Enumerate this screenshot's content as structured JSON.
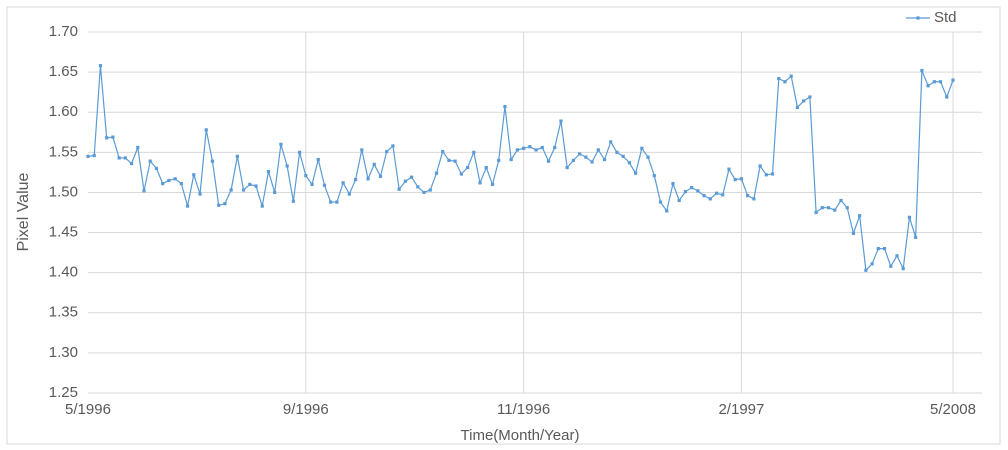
{
  "chart_data": {
    "type": "line",
    "x_label": "Time(Month/Year)",
    "y_label": "Pixel Value",
    "categories": [
      "5/1996",
      null,
      null,
      null,
      null,
      null,
      null,
      null,
      null,
      null,
      null,
      null,
      null,
      null,
      null,
      null,
      null,
      null,
      null,
      null,
      null,
      null,
      null,
      null,
      null,
      null,
      null,
      null,
      null,
      null,
      null,
      null,
      null,
      null,
      null,
      "9/1996",
      null,
      null,
      null,
      null,
      null,
      null,
      null,
      null,
      null,
      null,
      null,
      null,
      null,
      null,
      null,
      null,
      null,
      null,
      null,
      null,
      null,
      null,
      null,
      null,
      null,
      null,
      null,
      null,
      null,
      null,
      null,
      null,
      null,
      null,
      "11/1996",
      null,
      null,
      null,
      null,
      null,
      null,
      null,
      null,
      null,
      null,
      null,
      null,
      null,
      null,
      null,
      null,
      null,
      null,
      null,
      null,
      null,
      null,
      null,
      null,
      null,
      null,
      null,
      null,
      null,
      null,
      null,
      null,
      null,
      null,
      "2/1997",
      null,
      null,
      null,
      null,
      null,
      null,
      null,
      null,
      null,
      null,
      null,
      null,
      null,
      null,
      null,
      null,
      null,
      null,
      null,
      null,
      null,
      null,
      null,
      null,
      null,
      null,
      null,
      null,
      null,
      null,
      null,
      null,
      null,
      "5/2008"
    ],
    "series": [
      {
        "name": "Std",
        "color": "#5b9bd5",
        "values": [
          1.545,
          1.546,
          1.658,
          1.568,
          1.569,
          1.543,
          1.543,
          1.536,
          1.556,
          1.502,
          1.539,
          1.53,
          1.511,
          1.515,
          1.517,
          1.511,
          1.483,
          1.522,
          1.498,
          1.578,
          1.539,
          1.484,
          1.486,
          1.503,
          1.545,
          1.503,
          1.51,
          1.508,
          1.483,
          1.526,
          1.5,
          1.56,
          1.533,
          1.489,
          1.55,
          1.521,
          1.51,
          1.541,
          1.509,
          1.488,
          1.488,
          1.512,
          1.498,
          1.516,
          1.553,
          1.517,
          1.535,
          1.52,
          1.551,
          1.558,
          1.504,
          1.514,
          1.519,
          1.507,
          1.5,
          1.503,
          1.524,
          1.551,
          1.54,
          1.539,
          1.523,
          1.531,
          1.55,
          1.512,
          1.531,
          1.51,
          1.54,
          1.607,
          1.541,
          1.553,
          1.555,
          1.557,
          1.553,
          1.556,
          1.539,
          1.556,
          1.589,
          1.531,
          1.54,
          1.548,
          1.544,
          1.538,
          1.553,
          1.541,
          1.563,
          1.55,
          1.545,
          1.537,
          1.524,
          1.555,
          1.544,
          1.521,
          1.488,
          1.477,
          1.511,
          1.49,
          1.501,
          1.506,
          1.502,
          1.496,
          1.492,
          1.499,
          1.497,
          1.529,
          1.516,
          1.517,
          1.496,
          1.492,
          1.533,
          1.522,
          1.523,
          1.642,
          1.638,
          1.645,
          1.606,
          1.614,
          1.619,
          1.475,
          1.481,
          1.481,
          1.478,
          1.49,
          1.481,
          1.449,
          1.471,
          1.403,
          1.411,
          1.43,
          1.43,
          1.408,
          1.421,
          1.405,
          1.469,
          1.444,
          1.652,
          1.633,
          1.638,
          1.638,
          1.619,
          1.64
        ]
      }
    ],
    "ylim": [
      1.25,
      1.7
    ],
    "yticks": [
      {
        "value": 1.25,
        "label": "1.25"
      },
      {
        "value": 1.3,
        "label": "1.30"
      },
      {
        "value": 1.35,
        "label": "1.35"
      },
      {
        "value": 1.4,
        "label": "1.40"
      },
      {
        "value": 1.45,
        "label": "1.45"
      },
      {
        "value": 1.5,
        "label": "1.50"
      },
      {
        "value": 1.55,
        "label": "1.55"
      },
      {
        "value": 1.6,
        "label": "1.60"
      },
      {
        "value": 1.65,
        "label": "1.65"
      },
      {
        "value": 1.7,
        "label": "1.70"
      }
    ],
    "grid": true,
    "legend": "top-right"
  }
}
